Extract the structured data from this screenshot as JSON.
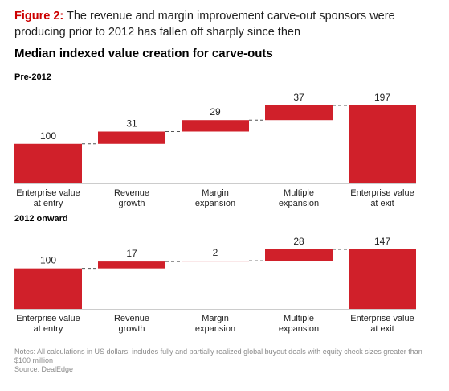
{
  "figure": {
    "label": "Figure 2:",
    "caption": "The revenue and margin improvement carve-out sponsors were producing prior to 2012 has fallen off sharply since then"
  },
  "title": "Median indexed value creation for carve-outs",
  "colors": {
    "bar": "#d0202a",
    "connector": "#555555",
    "axis": "#cccccc"
  },
  "chart_data": [
    {
      "type": "bar",
      "subtype": "waterfall",
      "title": "Pre-2012",
      "categories": [
        "Enterprise value at entry",
        "Revenue growth",
        "Margin expansion",
        "Multiple expansion",
        "Enterprise value at exit"
      ],
      "category_lines": [
        [
          "Enterprise value",
          "at entry"
        ],
        [
          "Revenue",
          "growth"
        ],
        [
          "Margin",
          "expansion"
        ],
        [
          "Multiple",
          "expansion"
        ],
        [
          "Enterprise value",
          "at exit"
        ]
      ],
      "values": [
        100,
        31,
        29,
        37,
        197
      ],
      "kinds": [
        "total",
        "delta",
        "delta",
        "delta",
        "total"
      ],
      "data_labels": [
        "100",
        "31",
        "29",
        "37",
        "197"
      ],
      "ylim": [
        0,
        197
      ]
    },
    {
      "type": "bar",
      "subtype": "waterfall",
      "title": "2012 onward",
      "categories": [
        "Enterprise value at entry",
        "Revenue growth",
        "Margin expansion",
        "Multiple expansion",
        "Enterprise value at exit"
      ],
      "category_lines": [
        [
          "Enterprise value",
          "at entry"
        ],
        [
          "Revenue",
          "growth"
        ],
        [
          "Margin",
          "expansion"
        ],
        [
          "Multiple",
          "expansion"
        ],
        [
          "Enterprise value",
          "at exit"
        ]
      ],
      "values": [
        100,
        17,
        2,
        28,
        147
      ],
      "kinds": [
        "total",
        "delta",
        "delta",
        "delta",
        "total"
      ],
      "data_labels": [
        "100",
        "17",
        "2",
        "28",
        "147"
      ],
      "ylim": [
        0,
        147
      ]
    }
  ],
  "notes": {
    "line1": "Notes: All calculations in US dollars; includes fully and partially realized global buyout deals with equity check sizes greater than $100 million",
    "line2": "Source: DealEdge"
  }
}
